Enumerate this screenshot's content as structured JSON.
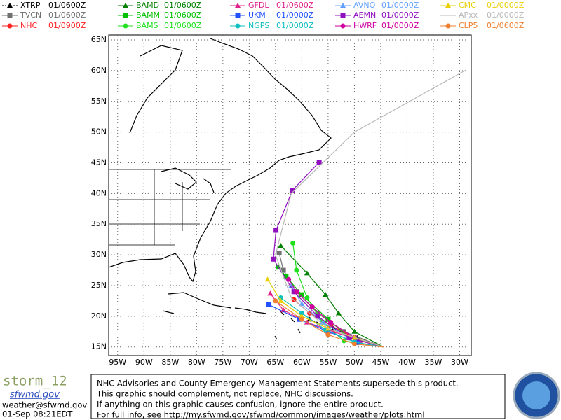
{
  "map": {
    "xlim": [
      -96.7,
      -27.8
    ],
    "ylim": [
      13.6,
      65.8
    ],
    "xticks": [
      {
        "value": -95,
        "label": "95W"
      },
      {
        "value": -90,
        "label": "90W"
      },
      {
        "value": -85,
        "label": "85W"
      },
      {
        "value": -80,
        "label": "80W"
      },
      {
        "value": -75,
        "label": "75W"
      },
      {
        "value": -70,
        "label": "70W"
      },
      {
        "value": -65,
        "label": "65W"
      },
      {
        "value": -60,
        "label": "60W"
      },
      {
        "value": -55,
        "label": "55W"
      },
      {
        "value": -50,
        "label": "50W"
      },
      {
        "value": -45,
        "label": "45W"
      },
      {
        "value": -40,
        "label": "40W"
      },
      {
        "value": -35,
        "label": "35W"
      },
      {
        "value": -30,
        "label": "30W"
      }
    ],
    "yticks": [
      {
        "value": 15,
        "label": "15N"
      },
      {
        "value": 20,
        "label": "20N"
      },
      {
        "value": 25,
        "label": "25N"
      },
      {
        "value": 30,
        "label": "30N"
      },
      {
        "value": 35,
        "label": "35N"
      },
      {
        "value": 40,
        "label": "40N"
      },
      {
        "value": 45,
        "label": "45N"
      },
      {
        "value": 50,
        "label": "50N"
      },
      {
        "value": 55,
        "label": "55N"
      },
      {
        "value": 60,
        "label": "60N"
      },
      {
        "value": 65,
        "label": "65N"
      }
    ],
    "grid": true,
    "series": [
      {
        "name": "XTRP",
        "time": "01/0600Z",
        "color": "#000000",
        "marker": "triangle",
        "dash": true,
        "lon": [
          -44.5,
          -49.5,
          -54,
          -58.5
        ],
        "lat": [
          15,
          16.5,
          18,
          19.5
        ]
      },
      {
        "name": "TVCN",
        "time": "01/0600Z",
        "color": "#707070",
        "marker": "square",
        "lon": [
          -44.5,
          -52,
          -57,
          -61,
          -63.5,
          -64.3
        ],
        "lat": [
          15,
          17.5,
          20.5,
          24,
          27.5,
          30.3
        ]
      },
      {
        "name": "NHC",
        "time": "01/0900Z",
        "color": "#ff2020",
        "marker": "circle",
        "lon": [
          -44.5,
          -50,
          -54.5,
          -58.5,
          -61.5
        ],
        "lat": [
          15,
          16.5,
          18.5,
          20.5,
          22.7
        ]
      },
      {
        "name": "BAMD",
        "time": "01/0600Z",
        "color": "#008000",
        "marker": "triangle",
        "lon": [
          -44.5,
          -50,
          -53,
          -55.5,
          -59,
          -64
        ],
        "lat": [
          15,
          17.5,
          20.5,
          23.5,
          27,
          31.5
        ]
      },
      {
        "name": "BAMM",
        "time": "01/0600Z",
        "color": "#00c000",
        "marker": "square",
        "lon": [
          -44.5,
          -51,
          -55,
          -60,
          -63,
          -64.5
        ],
        "lat": [
          15,
          16.5,
          19.5,
          23.5,
          26.5,
          28
        ]
      },
      {
        "name": "BAMS",
        "time": "01/0600Z",
        "color": "#20e020",
        "marker": "circle",
        "lon": [
          -44.5,
          -52,
          -56,
          -59,
          -61,
          -61.7
        ],
        "lat": [
          15,
          16,
          19,
          23,
          27.5,
          31.9
        ]
      },
      {
        "name": "GFDL",
        "time": "01/0600Z",
        "color": "#e0208a",
        "marker": "triangle",
        "lon": [
          -44.5,
          -49,
          -54,
          -59,
          -63.5,
          -66
        ],
        "lat": [
          15,
          16,
          17.5,
          19,
          21,
          23.7
        ]
      },
      {
        "name": "UKM",
        "time": "01/0000Z",
        "color": "#2050ff",
        "marker": "square",
        "lon": [
          -44.5,
          -49.5,
          -55,
          -60.5,
          -66.3
        ],
        "lat": [
          15,
          15.7,
          17.5,
          19.5,
          21.9
        ]
      },
      {
        "name": "NGPS",
        "time": "01/0000Z",
        "color": "#10c0c0",
        "marker": "circle",
        "lon": [
          -44.5,
          -50,
          -55.5,
          -60,
          -64
        ],
        "lat": [
          15,
          15.8,
          17.8,
          20.5,
          23
        ]
      },
      {
        "name": "AVNO",
        "time": "01/0000Z",
        "color": "#60a0ff",
        "marker": "triangle",
        "lon": [
          -44.5,
          -51,
          -56,
          -60,
          -62
        ],
        "lat": [
          15,
          16.5,
          19,
          22,
          25
        ]
      },
      {
        "name": "AEMN",
        "time": "01/0000Z",
        "color": "#9010c0",
        "marker": "square",
        "lon": [
          -44.5,
          -51,
          -57,
          -61.5,
          -65.4,
          -64.9,
          -61.8,
          -56.7
        ],
        "lat": [
          15,
          16.5,
          20,
          24,
          29.3,
          34,
          40.5,
          45.1
        ]
      },
      {
        "name": "HWRF",
        "time": "01/0000Z",
        "color": "#d000a0",
        "marker": "circle",
        "lon": [
          -44.5,
          -50,
          -54.5,
          -58,
          -61,
          -62.5
        ],
        "lat": [
          15,
          16.5,
          19,
          21.5,
          24,
          26
        ]
      },
      {
        "name": "CMC",
        "time": "01/0000Z",
        "color": "#e8d000",
        "marker": "triangle",
        "lon": [
          -44.5,
          -50,
          -55,
          -60,
          -64,
          -66.5
        ],
        "lat": [
          15,
          16.5,
          18,
          20,
          22.5,
          26
        ]
      },
      {
        "name": "APxx",
        "time": "01/0000Z",
        "color": "#b8b8b8",
        "marker": "none",
        "lon": [
          -44.5,
          -55,
          -62,
          -65,
          -62,
          -50,
          -29
        ],
        "lat": [
          15,
          18,
          23,
          30,
          40,
          50,
          60
        ]
      },
      {
        "name": "CLP5",
        "time": "01/0600Z",
        "color": "#f08030",
        "marker": "circle",
        "lon": [
          -44.5,
          -50,
          -55,
          -60,
          -65
        ],
        "lat": [
          15,
          15.5,
          17,
          19.5,
          22.5
        ]
      }
    ]
  },
  "footer": {
    "storm": "storm_12",
    "site": "sfwmd.gov",
    "email": "weather@sfwmd.gov",
    "date": "01-Sep 08:21EDT",
    "notice": [
      "NHC Advisories and County Emergency Management Statements supersede this product.",
      "This graphic should complement, not replace, NHC discussions.",
      "If anything on this graphic causes confusion, ignore the entire product.",
      "For full info, see  http://my.sfwmd.gov/sfwmd/common/images/weather/plots.html"
    ]
  }
}
